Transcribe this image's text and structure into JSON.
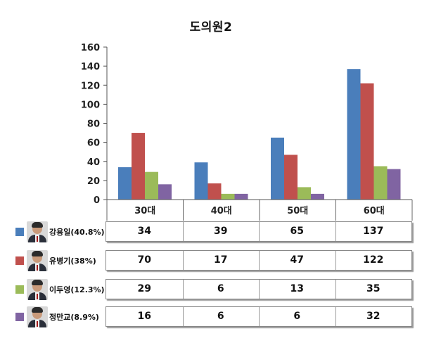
{
  "chart_data": {
    "type": "bar",
    "title": "도의원2",
    "categories": [
      "30대",
      "40대",
      "50대",
      "60대"
    ],
    "ylim": [
      0,
      160
    ],
    "yticks": [
      0,
      20,
      40,
      60,
      80,
      100,
      120,
      140,
      160
    ],
    "grid": false,
    "legend": "bottom-table",
    "series": [
      {
        "name": "강용일(40.8%)",
        "color": "#4a7ebb",
        "values": [
          34,
          39,
          65,
          137
        ]
      },
      {
        "name": "유병기(38%)",
        "color": "#c0504d",
        "values": [
          70,
          17,
          47,
          122
        ]
      },
      {
        "name": "이두영(12.3%)",
        "color": "#9bbb59",
        "values": [
          29,
          6,
          13,
          35
        ]
      },
      {
        "name": "정만교(8.9%)",
        "color": "#8064a2",
        "values": [
          16,
          6,
          6,
          32
        ]
      }
    ]
  }
}
